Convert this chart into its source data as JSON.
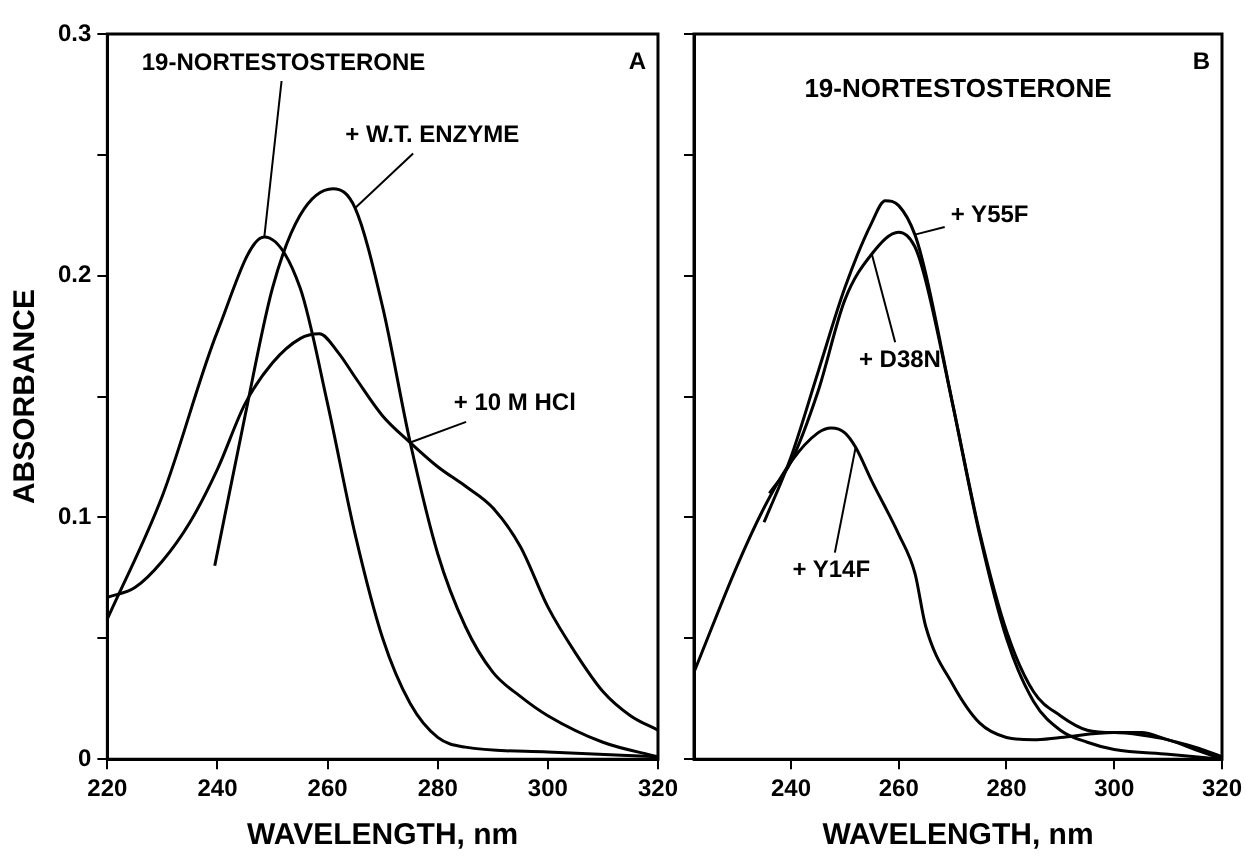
{
  "chart_data": [
    {
      "type": "line",
      "xlabel": "WAVELENGTH, nm",
      "ylabel": "ABSORBANCE",
      "annotations": [
        "A"
      ],
      "xlim": [
        220,
        320
      ],
      "xticks": [
        220,
        240,
        260,
        280,
        300,
        320
      ],
      "ylim": [
        0,
        0.3
      ],
      "yticks": [
        0,
        {
          "value": 0.05,
          "label": null
        },
        0.1,
        {
          "value": 0.15,
          "label": null
        },
        0.2,
        {
          "value": 0.25,
          "label": null
        },
        0.3
      ],
      "grid": false,
      "legend": false,
      "marker": "none",
      "series": [
        {
          "name": "19-NORTESTOSTERONE",
          "color": "#000000",
          "x": [
            220,
            230,
            240,
            248.5,
            255,
            260,
            265,
            270,
            275,
            280,
            285,
            300,
            320
          ],
          "values": [
            0.058,
            0.109,
            0.177,
            0.216,
            0.195,
            0.147,
            0.093,
            0.05,
            0.023,
            0.009,
            0.005,
            0.003,
            0.001
          ]
        },
        {
          "name": "+ W.T. ENZYME",
          "color": "#000000",
          "x": [
            239.5,
            245,
            250,
            255,
            261,
            265,
            270,
            275,
            280,
            285,
            290,
            295,
            300,
            310,
            320
          ],
          "values": [
            0.08,
            0.142,
            0.195,
            0.225,
            0.236,
            0.228,
            0.187,
            0.131,
            0.085,
            0.055,
            0.036,
            0.026,
            0.018,
            0.007,
            0.001
          ]
        },
        {
          "name": "+ 10 M HCl",
          "color": "#000000",
          "x": [
            220,
            225,
            230,
            235,
            240,
            245,
            250,
            255,
            258.5,
            262,
            265,
            270,
            275,
            280,
            285,
            290,
            295,
            300,
            305,
            310,
            315,
            320
          ],
          "values": [
            0.067,
            0.071,
            0.082,
            0.098,
            0.12,
            0.147,
            0.164,
            0.174,
            0.176,
            0.168,
            0.158,
            0.142,
            0.131,
            0.121,
            0.113,
            0.104,
            0.088,
            0.063,
            0.044,
            0.028,
            0.018,
            0.012
          ]
        }
      ]
    },
    {
      "type": "line",
      "xlabel": "WAVELENGTH, nm",
      "annotations": [
        "19-NORTESTOSTERONE",
        "B"
      ],
      "xlim": [
        222,
        320
      ],
      "xticks": [
        240,
        260,
        280,
        300,
        320
      ],
      "ylim": [
        0,
        0.3
      ],
      "yticks": [
        0,
        {
          "value": 0.05,
          "label": null
        },
        0.1,
        {
          "value": 0.15,
          "label": null
        },
        0.2,
        {
          "value": 0.25,
          "label": null
        },
        0.3
      ],
      "tick_labels": "x",
      "grid": false,
      "legend": false,
      "marker": "none",
      "series": [
        {
          "name": "+ Y55F",
          "color": "#000000",
          "x": [
            235,
            240,
            245,
            250,
            255,
            257.5,
            260,
            263,
            265,
            270,
            275,
            280,
            285,
            290,
            295,
            300,
            310,
            320
          ],
          "values": [
            0.098,
            0.125,
            0.16,
            0.195,
            0.222,
            0.231,
            0.229,
            0.217,
            0.201,
            0.147,
            0.093,
            0.05,
            0.024,
            0.012,
            0.007,
            0.004,
            0.002,
            0
          ]
        },
        {
          "name": "+ D38N",
          "color": "#000000",
          "x": [
            236,
            240,
            245,
            250,
            255,
            260,
            263,
            265,
            270,
            275,
            280,
            285,
            290,
            295,
            300,
            305,
            310,
            315,
            320
          ],
          "values": [
            0.11,
            0.123,
            0.152,
            0.19,
            0.209,
            0.218,
            0.212,
            0.198,
            0.147,
            0.094,
            0.053,
            0.028,
            0.018,
            0.012,
            0.011,
            0.011,
            0.008,
            0.005,
            0.001
          ]
        },
        {
          "name": "+ Y14F",
          "color": "#000000",
          "x": [
            222,
            230,
            235,
            240,
            245,
            247.5,
            250,
            252,
            255,
            260,
            263,
            265,
            270,
            275,
            280,
            285,
            290,
            300,
            305,
            310,
            315,
            320
          ],
          "values": [
            0.036,
            0.08,
            0.104,
            0.123,
            0.135,
            0.137,
            0.135,
            0.129,
            0.115,
            0.093,
            0.077,
            0.055,
            0.031,
            0.015,
            0.009,
            0.008,
            0.009,
            0.011,
            0.01,
            0.008,
            0.004,
            0
          ]
        }
      ]
    }
  ]
}
